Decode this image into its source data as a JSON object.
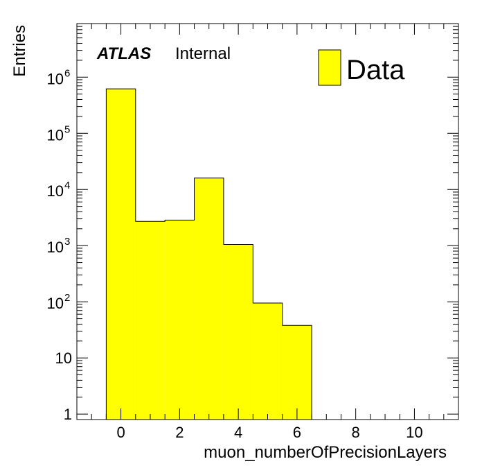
{
  "chart_data": {
    "type": "bar",
    "xlabel": "muon_numberOfPrecisionLayers",
    "ylabel": "Entries",
    "xlim": [
      -1.5,
      11.5
    ],
    "ylim": [
      0.8,
      9000000
    ],
    "yscale": "log",
    "x_ticks": [
      "0",
      "2",
      "4",
      "6",
      "8",
      "10"
    ],
    "x_tick_values": [
      0,
      2,
      4,
      6,
      8,
      10
    ],
    "y_ticks": [
      {
        "value": 1,
        "base": "1",
        "exp": ""
      },
      {
        "value": 10,
        "base": "10",
        "exp": ""
      },
      {
        "value": 100,
        "base": "10",
        "exp": "2"
      },
      {
        "value": 1000,
        "base": "10",
        "exp": "3"
      },
      {
        "value": 10000,
        "base": "10",
        "exp": "4"
      },
      {
        "value": 100000,
        "base": "10",
        "exp": "5"
      },
      {
        "value": 1000000,
        "base": "10",
        "exp": "6"
      }
    ],
    "bins": [
      {
        "low": -0.5,
        "high": 0.5,
        "value": 620000
      },
      {
        "low": 0.5,
        "high": 1.5,
        "value": 2700
      },
      {
        "low": 1.5,
        "high": 2.5,
        "value": 2850
      },
      {
        "low": 2.5,
        "high": 3.5,
        "value": 16000
      },
      {
        "low": 3.5,
        "high": 4.5,
        "value": 1050
      },
      {
        "low": 4.5,
        "high": 5.5,
        "value": 95
      },
      {
        "low": 5.5,
        "high": 6.5,
        "value": 38
      }
    ],
    "series": [
      {
        "name": "Data",
        "color": "#ffff00"
      }
    ],
    "legend": "top-right",
    "grid": false,
    "annotation": {
      "bold_italic": "ATLAS",
      "normal": "Internal"
    }
  }
}
